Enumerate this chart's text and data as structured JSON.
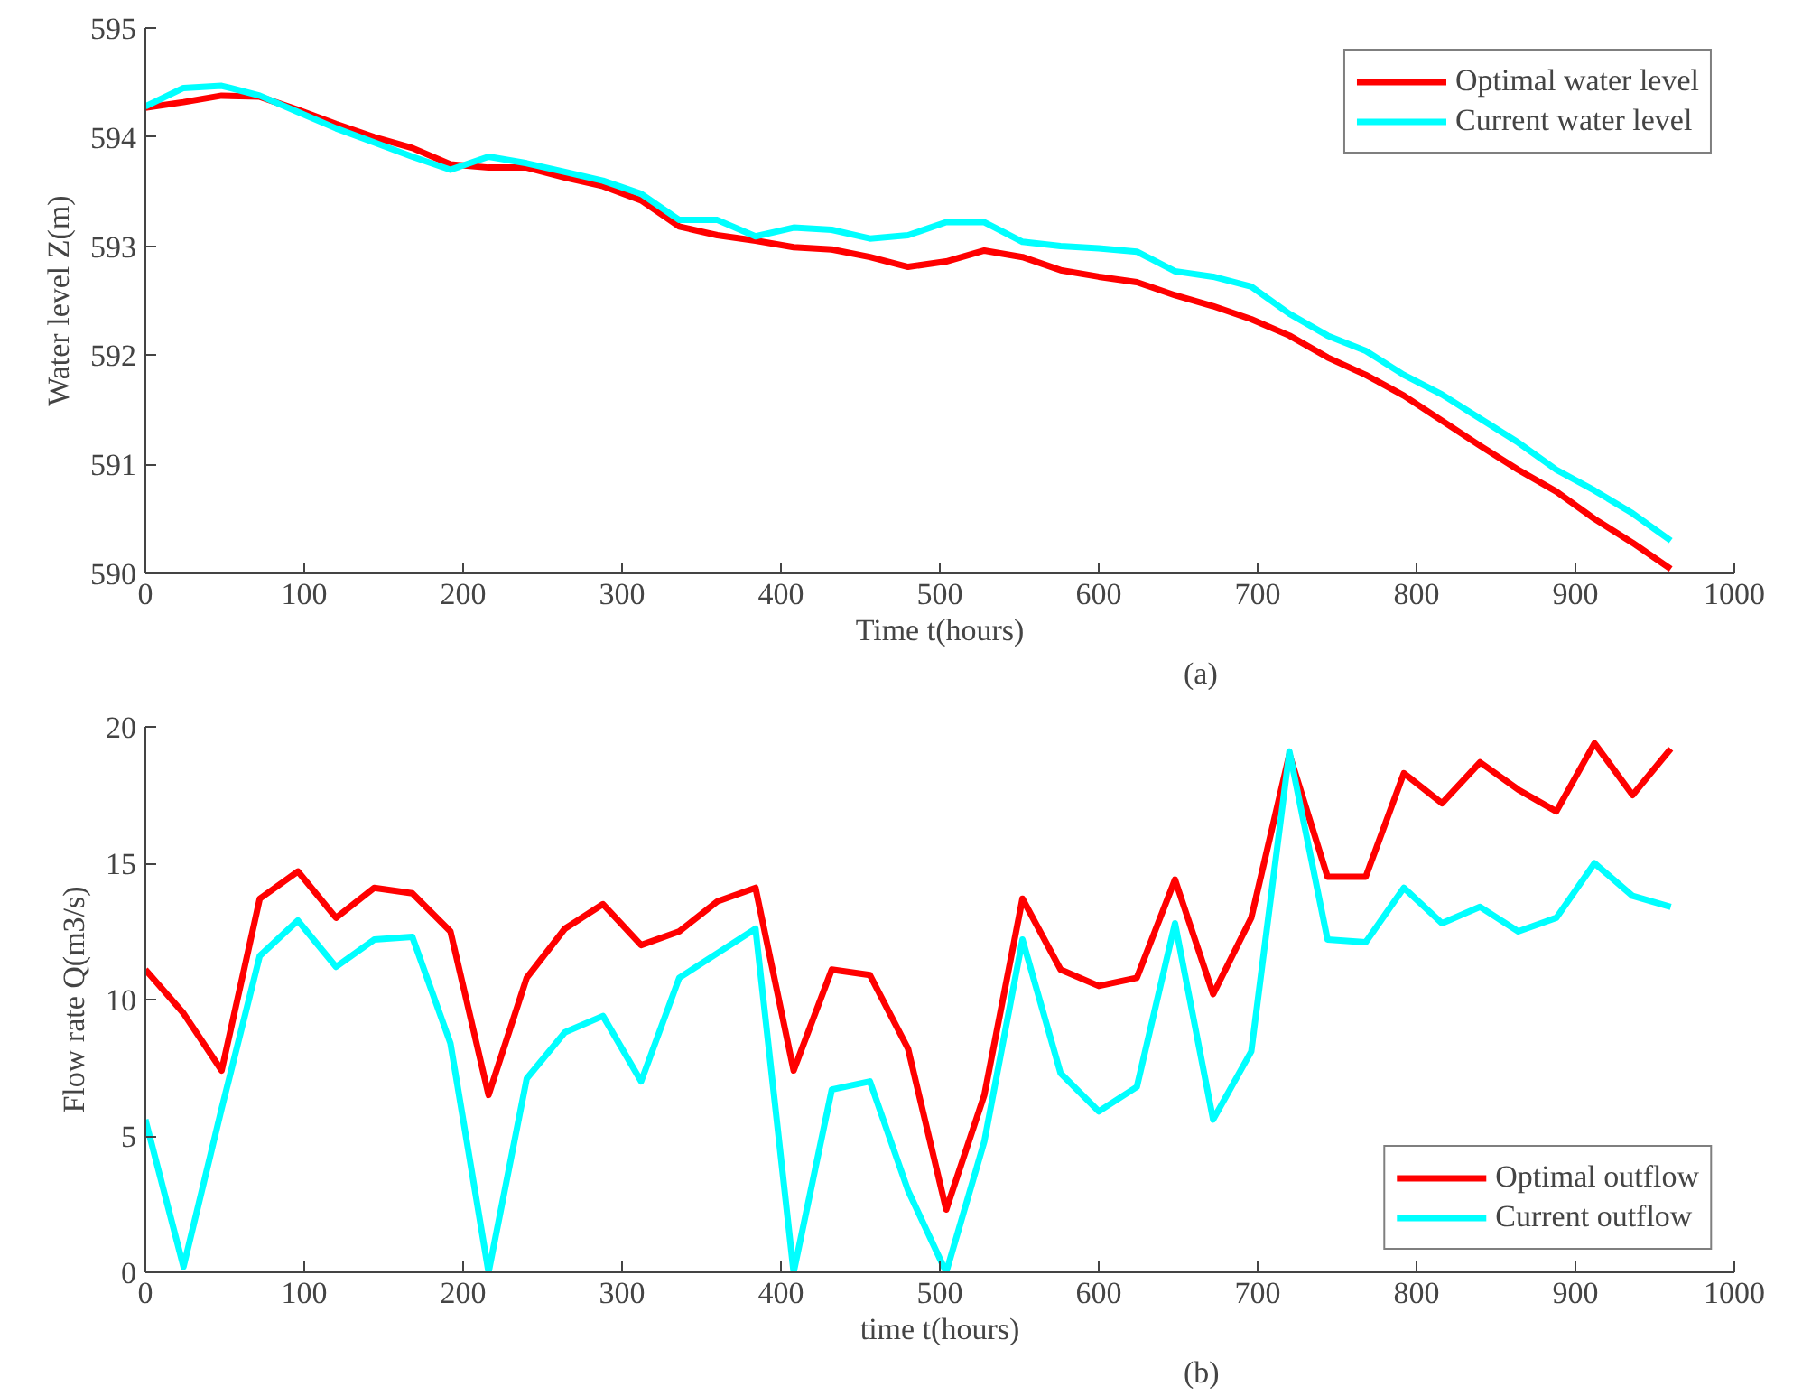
{
  "chart_data": [
    {
      "type": "line",
      "xlabel": "Time t(hours)",
      "ylabel": "Water level Z(m)",
      "annotations": [
        "(a)"
      ],
      "x": [
        0,
        24,
        48,
        72,
        96,
        120,
        144,
        168,
        192,
        216,
        240,
        264,
        288,
        312,
        336,
        360,
        384,
        408,
        432,
        456,
        480,
        504,
        528,
        552,
        576,
        600,
        624,
        648,
        672,
        696,
        720,
        744,
        768,
        792,
        816,
        840,
        864,
        888,
        912,
        936,
        960
      ],
      "series": [
        {
          "name": "Optimal water level",
          "color": "#ff0000",
          "values": [
            594.27,
            594.32,
            594.38,
            594.37,
            594.25,
            594.12,
            594.0,
            593.9,
            593.75,
            593.72,
            593.72,
            593.63,
            593.55,
            593.42,
            593.18,
            593.1,
            593.05,
            592.99,
            592.97,
            592.9,
            592.81,
            592.86,
            592.96,
            592.9,
            592.78,
            592.72,
            592.67,
            592.55,
            592.45,
            592.33,
            592.18,
            591.98,
            591.82,
            591.63,
            591.4,
            591.17,
            590.95,
            590.75,
            590.5,
            590.28,
            590.04
          ]
        },
        {
          "name": "Current water level",
          "color": "#00ffff",
          "values": [
            594.28,
            594.45,
            594.47,
            594.38,
            594.23,
            594.08,
            593.95,
            593.82,
            593.7,
            593.82,
            593.76,
            593.68,
            593.6,
            593.48,
            593.24,
            593.24,
            593.09,
            593.17,
            593.15,
            593.07,
            593.1,
            593.22,
            593.22,
            593.04,
            593.0,
            592.98,
            592.95,
            592.77,
            592.72,
            592.63,
            592.38,
            592.18,
            592.04,
            591.82,
            591.64,
            591.42,
            591.2,
            590.95,
            590.76,
            590.55,
            590.3
          ]
        }
      ],
      "xlim": [
        0,
        1000
      ],
      "xticks": [
        0,
        100,
        200,
        300,
        400,
        500,
        600,
        700,
        800,
        900,
        1000
      ],
      "ylim": [
        590,
        595
      ],
      "yticks": [
        590,
        591,
        592,
        593,
        594,
        595
      ],
      "grid": false,
      "legend": "top right",
      "line_style": "solid"
    },
    {
      "type": "line",
      "xlabel": "time t(hours)",
      "ylabel": "Flow rate Q(m3/s)",
      "annotations": [
        "(b)"
      ],
      "x": [
        0,
        24,
        48,
        72,
        96,
        120,
        144,
        168,
        192,
        216,
        240,
        264,
        288,
        312,
        336,
        360,
        384,
        408,
        432,
        456,
        480,
        504,
        528,
        552,
        576,
        600,
        624,
        648,
        672,
        696,
        720,
        744,
        768,
        792,
        816,
        840,
        864,
        888,
        912,
        936,
        960
      ],
      "series": [
        {
          "name": "Optimal outflow",
          "color": "#ff0000",
          "values": [
            11.1,
            9.5,
            7.4,
            13.7,
            14.7,
            13.0,
            14.1,
            13.9,
            12.5,
            6.5,
            10.8,
            12.6,
            13.5,
            12.0,
            12.5,
            13.6,
            14.1,
            7.4,
            11.1,
            10.9,
            8.2,
            2.3,
            6.5,
            13.7,
            11.1,
            10.5,
            10.8,
            14.4,
            10.2,
            13.0,
            19.0,
            14.5,
            14.5,
            18.3,
            17.2,
            18.7,
            17.7,
            16.9,
            19.4,
            17.5,
            19.2
          ]
        },
        {
          "name": "Current outflow",
          "color": "#00ffff",
          "values": [
            5.6,
            0.2,
            6.0,
            11.6,
            12.9,
            11.2,
            12.2,
            12.3,
            8.4,
            0,
            7.1,
            8.8,
            9.4,
            7.0,
            10.8,
            11.7,
            12.6,
            0,
            6.7,
            7.0,
            3.0,
            0,
            4.8,
            12.2,
            7.3,
            5.9,
            6.8,
            12.8,
            5.6,
            8.1,
            19.1,
            12.2,
            12.1,
            14.1,
            12.8,
            13.4,
            12.5,
            13.0,
            15.0,
            13.8,
            13.4
          ]
        }
      ],
      "xlim": [
        0,
        1000
      ],
      "xticks": [
        0,
        100,
        200,
        300,
        400,
        500,
        600,
        700,
        800,
        900,
        1000
      ],
      "ylim": [
        0,
        20
      ],
      "yticks": [
        0,
        5,
        10,
        15,
        20
      ],
      "grid": false,
      "legend": "bottom right",
      "line_style": "solid"
    }
  ]
}
